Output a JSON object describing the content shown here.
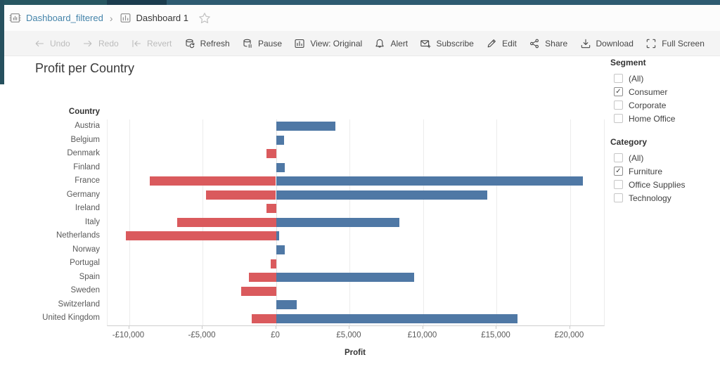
{
  "breadcrumb": {
    "workbook_label": "Dashboard_filtered",
    "separator": "›",
    "view_label": "Dashboard 1",
    "workbook_icon": "workbook-icon",
    "view_icon": "view-chart-icon",
    "favorite_icon": "star-icon"
  },
  "toolbar": {
    "items": [
      {
        "id": "undo",
        "label": "Undo",
        "icon": "undo-arrow-icon",
        "disabled": true
      },
      {
        "id": "redo",
        "label": "Redo",
        "icon": "redo-arrow-icon",
        "disabled": true
      },
      {
        "id": "revert",
        "label": "Revert",
        "icon": "revert-arrow-icon",
        "disabled": true
      },
      {
        "id": "refresh",
        "label": "Refresh",
        "icon": "database-refresh-icon",
        "disabled": false
      },
      {
        "id": "pause",
        "label": "Pause",
        "icon": "database-pause-icon",
        "disabled": false
      },
      {
        "id": "view-original",
        "label": "View: Original",
        "icon": "view-chart-icon",
        "disabled": false
      },
      {
        "id": "alert",
        "label": "Alert",
        "icon": "bell-icon",
        "disabled": false
      },
      {
        "id": "subscribe",
        "label": "Subscribe",
        "icon": "envelope-plus-icon",
        "disabled": false
      },
      {
        "id": "edit",
        "label": "Edit",
        "icon": "pencil-icon",
        "disabled": false
      },
      {
        "id": "share",
        "label": "Share",
        "icon": "share-nodes-icon",
        "disabled": false
      },
      {
        "id": "download",
        "label": "Download",
        "icon": "download-tray-icon",
        "disabled": false
      },
      {
        "id": "fullscreen",
        "label": "Full Screen",
        "icon": "fullscreen-brackets-icon",
        "disabled": false
      }
    ]
  },
  "chart_data": {
    "type": "bar",
    "orientation": "horizontal",
    "title": "Profit per Country",
    "row_header": "Country",
    "xlabel": "Profit",
    "categories": [
      "Austria",
      "Belgium",
      "Denmark",
      "Finland",
      "France",
      "Germany",
      "Ireland",
      "Italy",
      "Netherlands",
      "Norway",
      "Portugal",
      "Spain",
      "Sweden",
      "Switzerland",
      "United Kingdom"
    ],
    "series": [
      {
        "name": "profit-positive",
        "color": "#4f78a5",
        "values": [
          4040,
          560,
          0,
          620,
          20890,
          14380,
          0,
          8400,
          220,
          610,
          0,
          9400,
          0,
          1400,
          16440
        ]
      },
      {
        "name": "profit-negative",
        "color": "#da5a5d",
        "values": [
          0,
          0,
          -630,
          0,
          -8590,
          -4760,
          -660,
          -6720,
          -10220,
          0,
          -350,
          -1840,
          -2370,
          0,
          -1650
        ]
      }
    ],
    "x_ticks": [
      -10000,
      -5000,
      0,
      5000,
      10000,
      15000,
      20000
    ],
    "x_tick_labels": [
      "-£10,000",
      "-£5,000",
      "£0",
      "£5,000",
      "£10,000",
      "£15,000",
      "£20,000"
    ],
    "xlim": [
      -11460,
      22320
    ],
    "grid": true,
    "legend": "none"
  },
  "filters": [
    {
      "title": "Segment",
      "options": [
        {
          "label": "(All)",
          "checked": false
        },
        {
          "label": "Consumer",
          "checked": true
        },
        {
          "label": "Corporate",
          "checked": false
        },
        {
          "label": "Home Office",
          "checked": false
        }
      ]
    },
    {
      "title": "Category",
      "options": [
        {
          "label": "(All)",
          "checked": false
        },
        {
          "label": "Furniture",
          "checked": true
        },
        {
          "label": "Office Supplies",
          "checked": false
        },
        {
          "label": "Technology",
          "checked": false
        }
      ]
    }
  ],
  "colors": {
    "bar_positive": "#4f78a5",
    "bar_negative": "#da5a5d",
    "link": "#4484aa",
    "toolbar_bg": "#f4f4f4",
    "top_strip": [
      "#265560",
      "#1b3c4e",
      "#2e5b71"
    ]
  }
}
